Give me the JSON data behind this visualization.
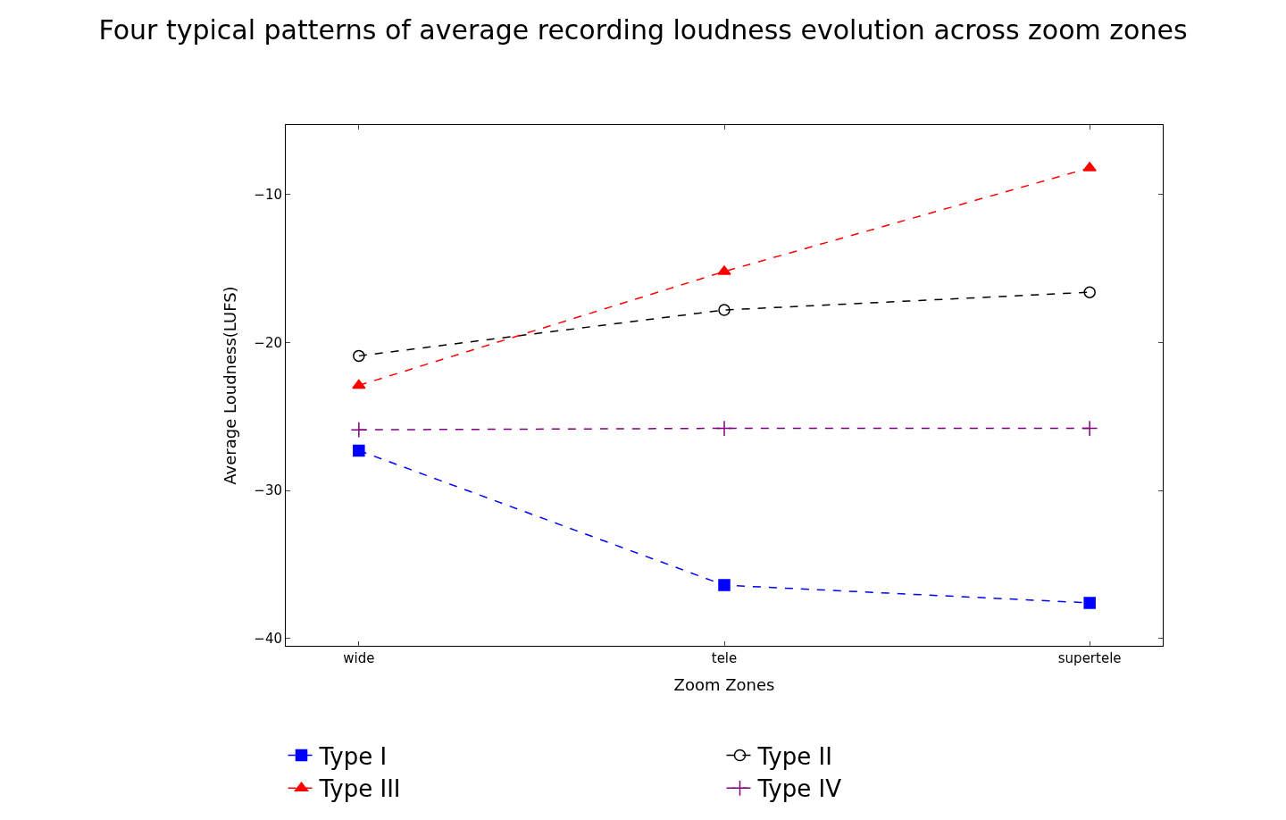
{
  "chart_data": {
    "type": "line",
    "title": "Four typical patterns of average recording loudness evolution across zoom zones",
    "xlabel": "Zoom Zones",
    "ylabel": "Average Loudness(LUFS)",
    "categories": [
      "wide",
      "tele",
      "supertele"
    ],
    "series": [
      {
        "name": "Type I",
        "color": "#0000ff",
        "marker": "square",
        "values": [
          -27.3,
          -36.4,
          -37.6
        ]
      },
      {
        "name": "Type II",
        "color": "#000000",
        "marker": "circle",
        "values": [
          -20.9,
          -17.8,
          -16.6
        ]
      },
      {
        "name": "Type III",
        "color": "#ff0000",
        "marker": "triangle",
        "values": [
          -22.9,
          -15.2,
          -8.2
        ]
      },
      {
        "name": "Type IV",
        "color": "#800080",
        "marker": "cross",
        "values": [
          -25.9,
          -25.8,
          -25.8
        ]
      }
    ],
    "ylim": [
      -40.5,
      -5.3
    ],
    "yticks": [
      -40,
      -30,
      -20,
      -10
    ],
    "line_style": "dashed",
    "legend": "bottom"
  }
}
